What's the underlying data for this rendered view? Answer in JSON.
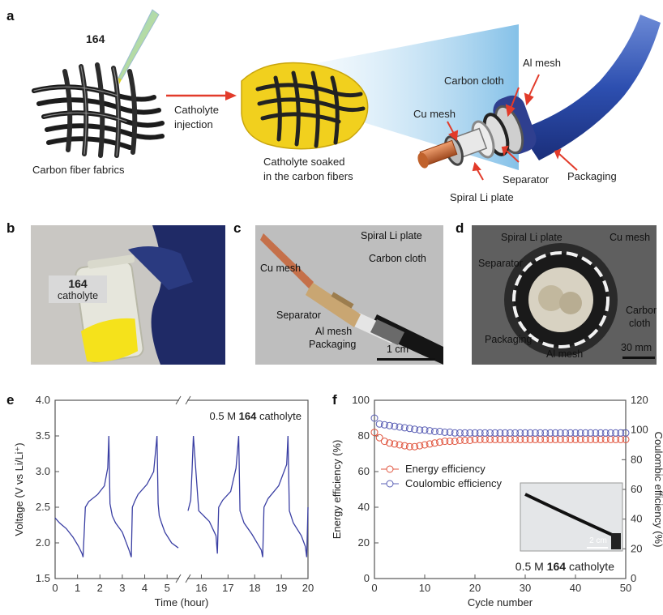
{
  "panel_a": {
    "letter": "a",
    "pipette_label": "164",
    "label_fabrics": "Carbon fiber fabrics",
    "arrow_label_1": "Catholyte",
    "arrow_label_2": "injection",
    "soaked_1": "Catholyte soaked",
    "soaked_2": "in the carbon fibers",
    "parts": {
      "al_mesh": "Al mesh",
      "carbon_cloth": "Carbon cloth",
      "cu_mesh": "Cu mesh",
      "separator": "Separator",
      "packaging": "Packaging",
      "spiral_li": "Spiral Li plate"
    }
  },
  "panel_b": {
    "letter": "b",
    "label_num": "164",
    "label_text": "catholyte"
  },
  "panel_c": {
    "letter": "c",
    "spiral_li": "Spiral Li plate",
    "cu_mesh": "Cu mesh",
    "carbon_cloth": "Carbon cloth",
    "separator": "Separator",
    "al_mesh": "Al mesh",
    "packaging": "Packaging",
    "scale": "1 cm"
  },
  "panel_d": {
    "letter": "d",
    "spiral_li": "Spiral Li plate",
    "cu_mesh": "Cu mesh",
    "separator": "Separator",
    "carbon_1": "Carbon",
    "carbon_2": "cloth",
    "packaging": "Packaging",
    "al_mesh": "Al mesh",
    "scale": "30 mm"
  },
  "chart_data": [
    {
      "panel": "e",
      "type": "line",
      "annotation_prefix": "0.5 M",
      "annotation_num": "164",
      "annotation_suffix": "catholyte",
      "xlabel": "Time (hour)",
      "ylabel": "Voltage (V vs Li/Li⁺)",
      "xlim": [
        0,
        20
      ],
      "ylim": [
        1.5,
        4.0
      ],
      "axis_break_at_x": 5.5,
      "xticks": [
        "0",
        "1",
        "2",
        "3",
        "4",
        "5",
        "16",
        "17",
        "18",
        "19",
        "20"
      ],
      "yticks": [
        "1.5",
        "2.0",
        "2.5",
        "3.0",
        "3.5",
        "4.0"
      ],
      "series": [
        {
          "color": "#3a3fa3",
          "x": [
            0,
            0.2,
            0.5,
            0.8,
            1.05,
            1.2,
            1.25,
            1.35,
            1.5,
            1.9,
            2.2,
            2.35,
            2.4,
            2.45,
            2.55,
            2.7,
            3.0,
            3.3,
            3.4,
            3.45,
            3.55,
            3.7,
            4.1,
            4.4,
            4.55,
            4.6,
            4.65,
            4.75,
            4.9,
            5.2,
            5.5
          ],
          "y": [
            2.35,
            2.28,
            2.2,
            2.08,
            1.95,
            1.85,
            1.8,
            2.5,
            2.58,
            2.68,
            2.8,
            3.05,
            3.5,
            2.55,
            2.38,
            2.28,
            2.15,
            1.9,
            1.8,
            2.5,
            2.58,
            2.68,
            2.82,
            3.0,
            3.5,
            2.55,
            2.38,
            2.28,
            2.15,
            2.0,
            1.93
          ]
        },
        {
          "color": "#3a3fa3",
          "x": [
            15.5,
            15.6,
            15.65,
            15.7,
            15.9,
            16.3,
            16.55,
            16.6,
            16.65,
            16.8,
            17.1,
            17.3,
            17.4,
            17.45,
            17.6,
            17.9,
            18.25,
            18.3,
            18.35,
            18.5,
            18.9,
            19.2,
            19.25,
            19.3,
            19.45,
            19.75,
            19.9,
            19.95,
            20.0
          ],
          "y": [
            2.45,
            2.6,
            3.0,
            3.5,
            2.45,
            2.3,
            2.1,
            1.85,
            2.5,
            2.6,
            2.72,
            3.05,
            3.5,
            2.45,
            2.28,
            2.12,
            1.9,
            1.8,
            2.5,
            2.62,
            2.8,
            3.1,
            3.5,
            2.45,
            2.28,
            2.1,
            1.95,
            1.8,
            2.5
          ]
        }
      ]
    },
    {
      "panel": "f",
      "type": "scatter",
      "xlabel": "Cycle number",
      "ylabel_left": "Energy efficiency (%)",
      "ylabel_right": "Coulombic efficiency (%)",
      "xlim": [
        0,
        50
      ],
      "ylim_left": [
        0,
        100
      ],
      "ylim_right": [
        0,
        120
      ],
      "xticks": [
        "0",
        "10",
        "20",
        "30",
        "40",
        "50"
      ],
      "yticks_left": [
        "0",
        "20",
        "40",
        "60",
        "80",
        "100"
      ],
      "yticks_right": [
        "0",
        "20",
        "40",
        "60",
        "80",
        "100",
        "120"
      ],
      "legend_position": "middle-left",
      "annotation_prefix": "0.5 M",
      "annotation_num": "164",
      "annotation_suffix": "catholyte",
      "inset_scale": "2 cm",
      "series": [
        {
          "name": "Energy efficiency",
          "axis": "left",
          "color": "#e0553f",
          "x": [
            0,
            1,
            2,
            3,
            4,
            5,
            6,
            7,
            8,
            9,
            10,
            11,
            12,
            13,
            14,
            15,
            16,
            17,
            18,
            19,
            20,
            21,
            22,
            23,
            24,
            25,
            26,
            27,
            28,
            29,
            30,
            31,
            32,
            33,
            34,
            35,
            36,
            37,
            38,
            39,
            40,
            41,
            42,
            43,
            44,
            45,
            46,
            47,
            48,
            49,
            50
          ],
          "y": [
            82,
            79,
            77,
            76,
            75.5,
            75,
            74.5,
            74,
            74,
            74.5,
            75,
            75.5,
            76,
            76.5,
            77,
            77,
            77,
            77.5,
            77.5,
            77.5,
            78,
            78,
            78,
            78,
            78,
            78,
            78,
            78,
            78,
            78,
            78,
            78,
            78,
            78,
            78,
            78,
            78,
            78,
            78,
            78,
            78,
            78,
            78,
            78,
            78,
            78,
            78,
            78,
            78,
            78,
            78
          ]
        },
        {
          "name": "Coulombic efficiency",
          "axis": "right",
          "color": "#5a5fb5",
          "x": [
            0,
            1,
            2,
            3,
            4,
            5,
            6,
            7,
            8,
            9,
            10,
            11,
            12,
            13,
            14,
            15,
            16,
            17,
            18,
            19,
            20,
            21,
            22,
            23,
            24,
            25,
            26,
            27,
            28,
            29,
            30,
            31,
            32,
            33,
            34,
            35,
            36,
            37,
            38,
            39,
            40,
            41,
            42,
            43,
            44,
            45,
            46,
            47,
            48,
            49,
            50
          ],
          "y": [
            108,
            104,
            103.5,
            103,
            102.5,
            102,
            101.5,
            101,
            100.5,
            100,
            100,
            99.5,
            99,
            99,
            98.5,
            98.5,
            98,
            98,
            98,
            98,
            98,
            98,
            98,
            98,
            98,
            98,
            98,
            98,
            98,
            98,
            98,
            98,
            98,
            98,
            98,
            98,
            98,
            98,
            98,
            98,
            98,
            98,
            98,
            98,
            98,
            98,
            98,
            98,
            98,
            98,
            98
          ]
        }
      ]
    }
  ],
  "panel_e_letter": "e",
  "panel_f_letter": "f"
}
